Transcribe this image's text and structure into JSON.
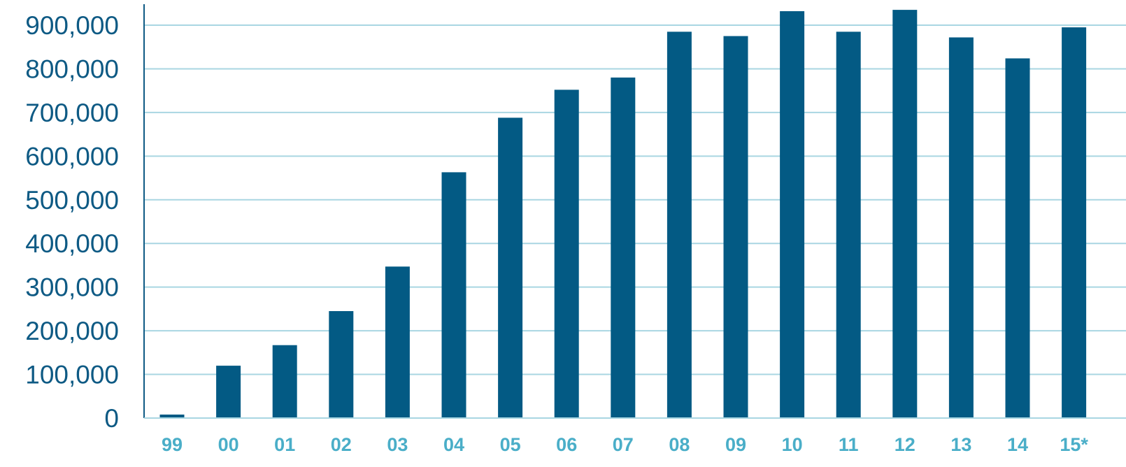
{
  "chart_data": {
    "type": "bar",
    "title": "",
    "xlabel": "",
    "ylabel": "",
    "categories": [
      "99",
      "00",
      "01",
      "02",
      "03",
      "04",
      "05",
      "06",
      "07",
      "08",
      "09",
      "10",
      "11",
      "12",
      "13",
      "14",
      "15*"
    ],
    "values": [
      8000,
      120000,
      167000,
      245000,
      347000,
      563000,
      688000,
      752000,
      780000,
      885000,
      875000,
      932000,
      885000,
      935000,
      872000,
      824000,
      895000
    ],
    "ylim": [
      0,
      900000
    ],
    "yticks": [
      0,
      100000,
      200000,
      300000,
      400000,
      500000,
      600000,
      700000,
      800000,
      900000
    ],
    "ytick_labels": [
      "0",
      "100,000",
      "200,000",
      "300,000",
      "400,000",
      "500,000",
      "600,000",
      "700,000",
      "800,000",
      "900,000"
    ],
    "grid": true,
    "legend": "none",
    "colors": {
      "bar": "#035a84",
      "grid": "#a9d6e2",
      "axis": "#0e5a84",
      "ytick_text": "#0e5a84",
      "xtick_text": "#4aaec8"
    }
  }
}
